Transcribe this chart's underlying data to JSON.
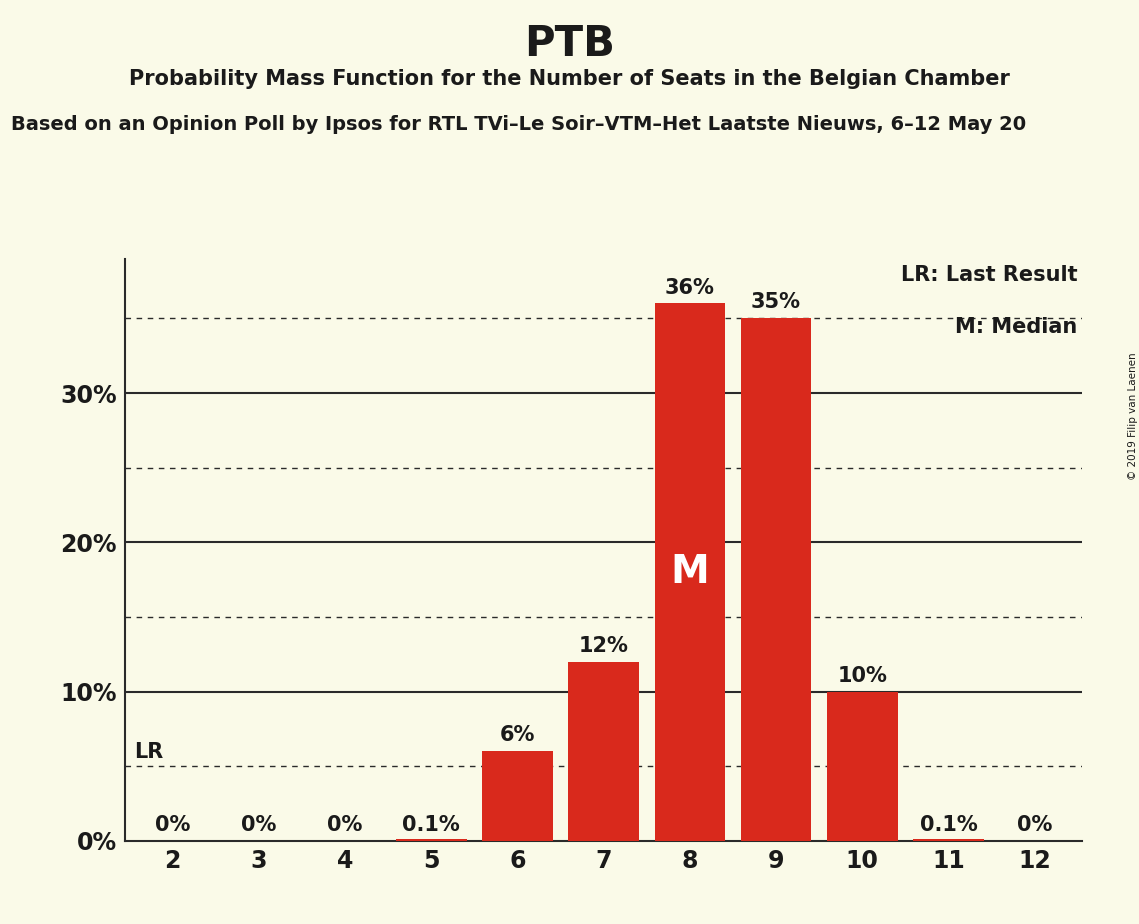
{
  "title": "PTB",
  "subtitle": "Probability Mass Function for the Number of Seats in the Belgian Chamber",
  "subtitle2": "Based on an Opinion Poll by Ipsos for RTL TVi–Le Soir–VTM–Het Laatste Nieuws, 6–12 May 20",
  "copyright": "© 2019 Filip van Laenen",
  "categories": [
    2,
    3,
    4,
    5,
    6,
    7,
    8,
    9,
    10,
    11,
    12
  ],
  "values": [
    0.0,
    0.0,
    0.0,
    0.001,
    0.06,
    0.12,
    0.36,
    0.35,
    0.1,
    0.001,
    0.0
  ],
  "bar_labels": [
    "0%",
    "0%",
    "0%",
    "0.1%",
    "6%",
    "12%",
    "36%",
    "35%",
    "10%",
    "0.1%",
    "0%"
  ],
  "bar_color": "#d9291c",
  "background_color": "#fafae8",
  "median_seat": 8,
  "lr_value": 0.05,
  "lr_label": "LR",
  "median_label": "M",
  "legend_lr": "LR: Last Result",
  "legend_m": "M: Median",
  "yticks": [
    0.0,
    0.1,
    0.2,
    0.3
  ],
  "ytick_labels": [
    "0%",
    "10%",
    "20%",
    "30%"
  ],
  "ylim": [
    0.0,
    0.39
  ],
  "dotted_lines": [
    0.05,
    0.15,
    0.25,
    0.35
  ],
  "solid_lines": [
    0.1,
    0.2,
    0.3
  ]
}
